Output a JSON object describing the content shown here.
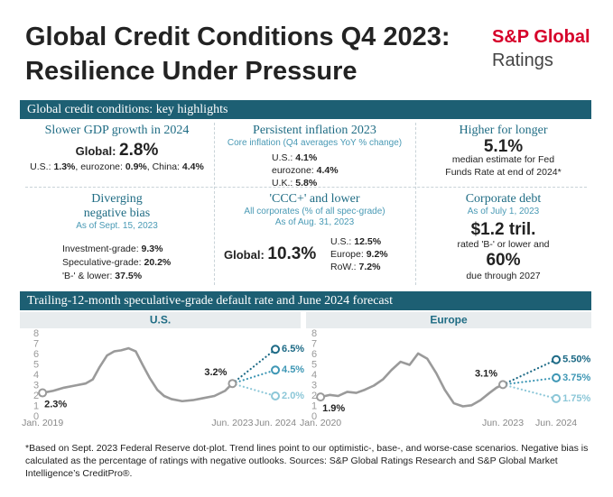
{
  "header": {
    "title_lines": [
      "Global Credit Conditions Q4 2023:",
      "Resilience Under Pressure"
    ],
    "logo_top": "S&P Global",
    "logo_bottom": "Ratings"
  },
  "highlights": {
    "heading": "Global credit conditions: key highlights",
    "cells": [
      {
        "title": "Slower GDP growth in 2024",
        "headline": {
          "label": "Global: ",
          "value": "2.8%"
        },
        "items": [
          {
            "label": "U.S.: ",
            "value": "1.3%"
          },
          {
            "label": ", eurozone: ",
            "value": "0.9%"
          },
          {
            "label": ", China: ",
            "value": "4.4%"
          }
        ]
      },
      {
        "title": "Persistent inflation 2023",
        "subtitle": "Core inflation (Q4 averages YoY % change)",
        "items": [
          {
            "label": "U.S.: ",
            "value": "4.1%"
          },
          {
            "label": "eurozone: ",
            "value": "4.4%"
          },
          {
            "label": "U.K.: ",
            "value": "5.8%"
          }
        ]
      },
      {
        "title": "Higher for longer",
        "headline": {
          "value": "5.1%"
        },
        "note": "median estimate for Fed Funds Rate at end of 2024*"
      },
      {
        "title": "Diverging negative bias",
        "subtitle": "As of Sept. 15, 2023",
        "items": [
          {
            "label": "Investment-grade: ",
            "value": "9.3%"
          },
          {
            "label": "Speculative-grade: ",
            "value": "20.2%"
          },
          {
            "label": "'B-' & lower: ",
            "value": "37.5%"
          }
        ]
      },
      {
        "title": "'CCC+' and lower",
        "subtitle": "All corporates (% of all spec-grade)",
        "date": "As of Aug. 31, 2023",
        "headline": {
          "label": "Global: ",
          "value": "10.3%"
        },
        "items": [
          {
            "label": "U.S.: ",
            "value": "12.5%"
          },
          {
            "label": "Europe: ",
            "value": "9.2%"
          },
          {
            "label": "RoW.: ",
            "value": "7.2%"
          }
        ]
      },
      {
        "title": "Corporate debt",
        "subtitle": "As of July 1, 2023",
        "headline": {
          "value": "$1.2 tril."
        },
        "note": "rated 'B-' or lower and",
        "headline2": {
          "value": "60%"
        },
        "note2": "due through 2027"
      }
    ]
  },
  "charts_heading": "Trailing-12-month speculative-grade default rate and June 2024 forecast",
  "chart_data": [
    {
      "type": "line",
      "title": "U.S.",
      "xlim": [
        2018.85,
        2025.05
      ],
      "ylim": [
        0,
        8
      ],
      "yticks": [
        0,
        1,
        2,
        3,
        4,
        5,
        6,
        7,
        8
      ],
      "xticks": [
        {
          "value": 2019.0,
          "label": "Jan. 2019"
        },
        {
          "value": 2023.42,
          "label": "Jun. 2023"
        },
        {
          "value": 2024.42,
          "label": "Jun. 2024"
        }
      ],
      "series": [
        {
          "color": "#9a9a9a",
          "dashed": false,
          "x": [
            2019.0,
            2019.25,
            2019.5,
            2019.75,
            2020.0,
            2020.17,
            2020.33,
            2020.5,
            2020.67,
            2020.83,
            2021.0,
            2021.17,
            2021.33,
            2021.5,
            2021.67,
            2021.83,
            2022.0,
            2022.25,
            2022.5,
            2022.75,
            2023.0,
            2023.25,
            2023.42
          ],
          "values": [
            2.3,
            2.5,
            2.8,
            3.0,
            3.2,
            3.6,
            4.8,
            5.9,
            6.3,
            6.4,
            6.6,
            6.3,
            5.0,
            3.7,
            2.6,
            2.0,
            1.7,
            1.5,
            1.6,
            1.8,
            2.0,
            2.5,
            3.2
          ],
          "value_labels": [
            "2.3%",
            null,
            null,
            null,
            null,
            null,
            null,
            null,
            null,
            null,
            null,
            null,
            null,
            null,
            null,
            null,
            null,
            null,
            null,
            null,
            null,
            null,
            "3.2%"
          ]
        },
        {
          "color": "#1d6a86",
          "dashed": true,
          "x": [
            2023.42,
            2024.42
          ],
          "values": [
            3.2,
            6.5
          ],
          "value_labels": [
            null,
            "6.5%"
          ]
        },
        {
          "color": "#3e97b5",
          "dashed": true,
          "x": [
            2023.42,
            2024.42
          ],
          "values": [
            3.2,
            4.5
          ],
          "value_labels": [
            null,
            "4.5%"
          ]
        },
        {
          "color": "#8cc7d8",
          "dashed": true,
          "x": [
            2023.42,
            2024.42
          ],
          "values": [
            3.2,
            2.0
          ],
          "value_labels": [
            null,
            "2.0%"
          ]
        }
      ]
    },
    {
      "type": "line",
      "title": "Europe",
      "xlim": [
        2019.88,
        2024.91
      ],
      "ylim": [
        0,
        8
      ],
      "yticks": [
        0,
        1,
        2,
        3,
        4,
        5,
        6,
        7,
        8
      ],
      "xticks": [
        {
          "value": 2020.0,
          "label": "Jan. 2020"
        },
        {
          "value": 2023.42,
          "label": "Jun. 2023"
        },
        {
          "value": 2024.42,
          "label": "Jun. 2024"
        }
      ],
      "series": [
        {
          "color": "#9a9a9a",
          "dashed": false,
          "x": [
            2020.0,
            2020.17,
            2020.33,
            2020.5,
            2020.67,
            2020.83,
            2021.0,
            2021.17,
            2021.33,
            2021.5,
            2021.67,
            2021.83,
            2022.0,
            2022.17,
            2022.33,
            2022.5,
            2022.67,
            2022.83,
            2023.0,
            2023.17,
            2023.3,
            2023.42
          ],
          "values": [
            1.9,
            2.1,
            2.0,
            2.4,
            2.3,
            2.6,
            3.0,
            3.6,
            4.5,
            5.3,
            5.0,
            6.1,
            5.6,
            4.2,
            2.6,
            1.3,
            1.0,
            1.1,
            1.6,
            2.3,
            2.8,
            3.1
          ],
          "value_labels": [
            "1.9%",
            null,
            null,
            null,
            null,
            null,
            null,
            null,
            null,
            null,
            null,
            null,
            null,
            null,
            null,
            null,
            null,
            null,
            null,
            null,
            null,
            "3.1%"
          ]
        },
        {
          "color": "#1d6a86",
          "dashed": true,
          "x": [
            2023.42,
            2024.42
          ],
          "values": [
            3.1,
            5.5
          ],
          "value_labels": [
            null,
            "5.50%"
          ]
        },
        {
          "color": "#3e97b5",
          "dashed": true,
          "x": [
            2023.42,
            2024.42
          ],
          "values": [
            3.1,
            3.75
          ],
          "value_labels": [
            null,
            "3.75%"
          ]
        },
        {
          "color": "#8cc7d8",
          "dashed": true,
          "x": [
            2023.42,
            2024.42
          ],
          "values": [
            3.1,
            1.75
          ],
          "value_labels": [
            null,
            "1.75%"
          ]
        }
      ]
    }
  ],
  "footnote": "*Based on Sept. 2023 Federal Reserve dot-plot. Trend lines point to our optimistic-, base-, and worse-case scenarios. Negative bias is calculated as the percentage of ratings with negative outlooks. Sources: S&P Global Ratings Research and S&P Global Market Intelligence’s CreditPro®."
}
